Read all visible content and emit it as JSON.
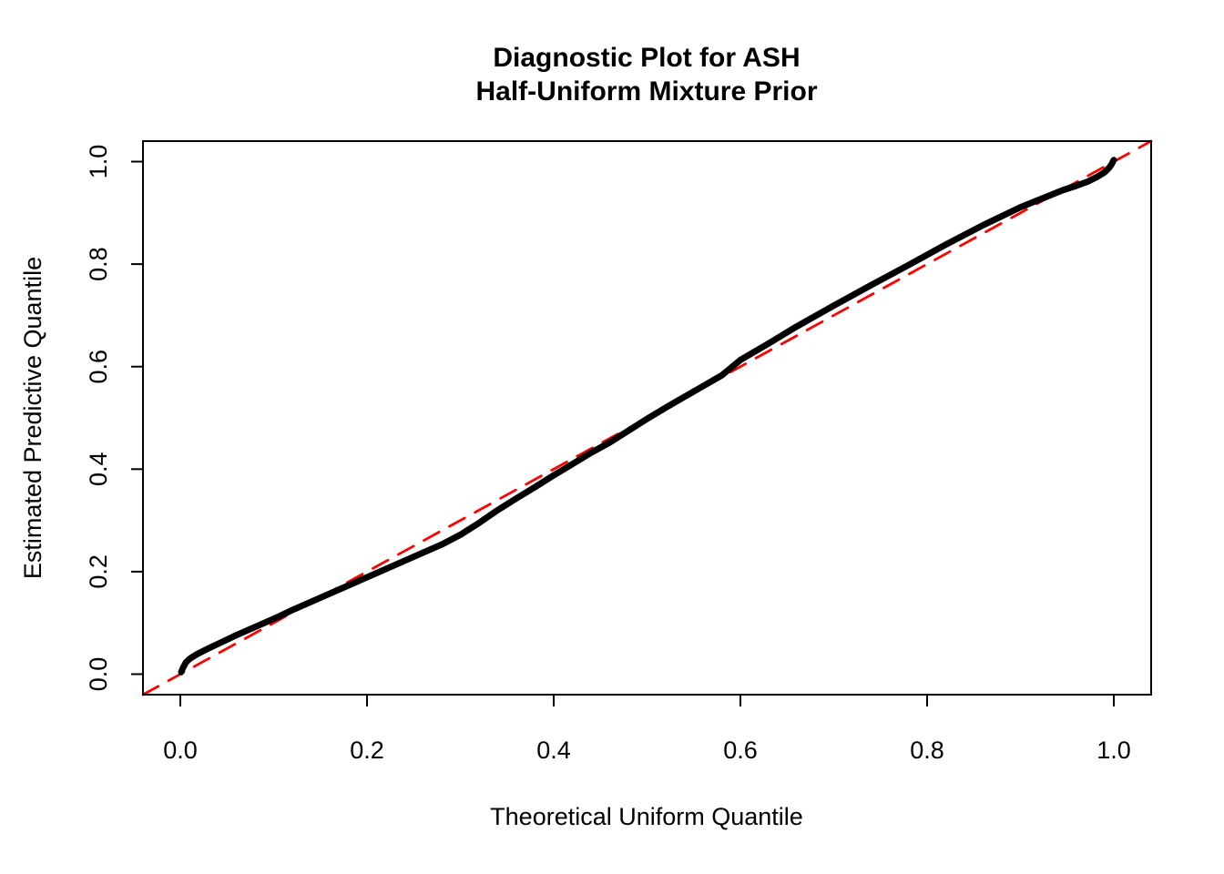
{
  "figure": {
    "background_color": "#FFFFFF",
    "title_line1": "Diagnostic Plot for ASH",
    "title_line2": "Half-Uniform Mixture Prior"
  },
  "chart_data": {
    "type": "line",
    "title": "Diagnostic Plot for ASH\nHalf-Uniform Mixture Prior",
    "xlabel": "Theoretical Uniform Quantile",
    "ylabel": "Estimated Predictive Quantile",
    "xlim": [
      -0.04,
      1.04
    ],
    "ylim": [
      -0.04,
      1.04
    ],
    "grid": false,
    "legend": false,
    "axis_color": "#000000",
    "x_ticks": {
      "values": [
        0.0,
        0.2,
        0.4,
        0.6,
        0.8,
        1.0
      ],
      "labels": [
        "0.0",
        "0.2",
        "0.4",
        "0.6",
        "0.8",
        "1.0"
      ]
    },
    "y_ticks": {
      "values": [
        0.0,
        0.2,
        0.4,
        0.6,
        0.8,
        1.0
      ],
      "labels": [
        "0.0",
        "0.2",
        "0.4",
        "0.6",
        "0.8",
        "1.0"
      ]
    },
    "series": [
      {
        "name": "estimated-predictive-quantiles",
        "description": "QQ curve of estimated predictive quantiles vs theoretical uniform quantiles",
        "color": "#000000",
        "line_style": "solid",
        "line_width": 7,
        "points": [
          [
            0.001,
            0.004
          ],
          [
            0.003,
            0.013
          ],
          [
            0.006,
            0.023
          ],
          [
            0.01,
            0.03
          ],
          [
            0.018,
            0.039
          ],
          [
            0.03,
            0.05
          ],
          [
            0.045,
            0.063
          ],
          [
            0.06,
            0.076
          ],
          [
            0.075,
            0.088
          ],
          [
            0.09,
            0.1
          ],
          [
            0.105,
            0.112
          ],
          [
            0.12,
            0.125
          ],
          [
            0.14,
            0.141
          ],
          [
            0.16,
            0.157
          ],
          [
            0.18,
            0.173
          ],
          [
            0.2,
            0.189
          ],
          [
            0.22,
            0.205
          ],
          [
            0.24,
            0.221
          ],
          [
            0.26,
            0.237
          ],
          [
            0.28,
            0.253
          ],
          [
            0.3,
            0.272
          ],
          [
            0.32,
            0.295
          ],
          [
            0.34,
            0.32
          ],
          [
            0.36,
            0.343
          ],
          [
            0.38,
            0.365
          ],
          [
            0.4,
            0.388
          ],
          [
            0.42,
            0.41
          ],
          [
            0.44,
            0.432
          ],
          [
            0.46,
            0.452
          ],
          [
            0.48,
            0.475
          ],
          [
            0.5,
            0.498
          ],
          [
            0.52,
            0.52
          ],
          [
            0.54,
            0.541
          ],
          [
            0.56,
            0.562
          ],
          [
            0.58,
            0.583
          ],
          [
            0.6,
            0.613
          ],
          [
            0.63,
            0.645
          ],
          [
            0.66,
            0.678
          ],
          [
            0.7,
            0.719
          ],
          [
            0.74,
            0.759
          ],
          [
            0.78,
            0.798
          ],
          [
            0.82,
            0.838
          ],
          [
            0.86,
            0.876
          ],
          [
            0.9,
            0.911
          ],
          [
            0.93,
            0.933
          ],
          [
            0.945,
            0.944
          ],
          [
            0.96,
            0.953
          ],
          [
            0.972,
            0.961
          ],
          [
            0.982,
            0.97
          ],
          [
            0.99,
            0.979
          ],
          [
            0.995,
            0.988
          ],
          [
            0.998,
            0.996
          ],
          [
            1.0,
            1.003
          ]
        ]
      },
      {
        "name": "identity-reference-line",
        "description": "y = x reference diagonal",
        "color": "#FF0000",
        "line_style": "dashed",
        "line_width": 2.8,
        "points": [
          [
            -0.04,
            -0.04
          ],
          [
            1.04,
            1.04
          ]
        ]
      }
    ]
  }
}
